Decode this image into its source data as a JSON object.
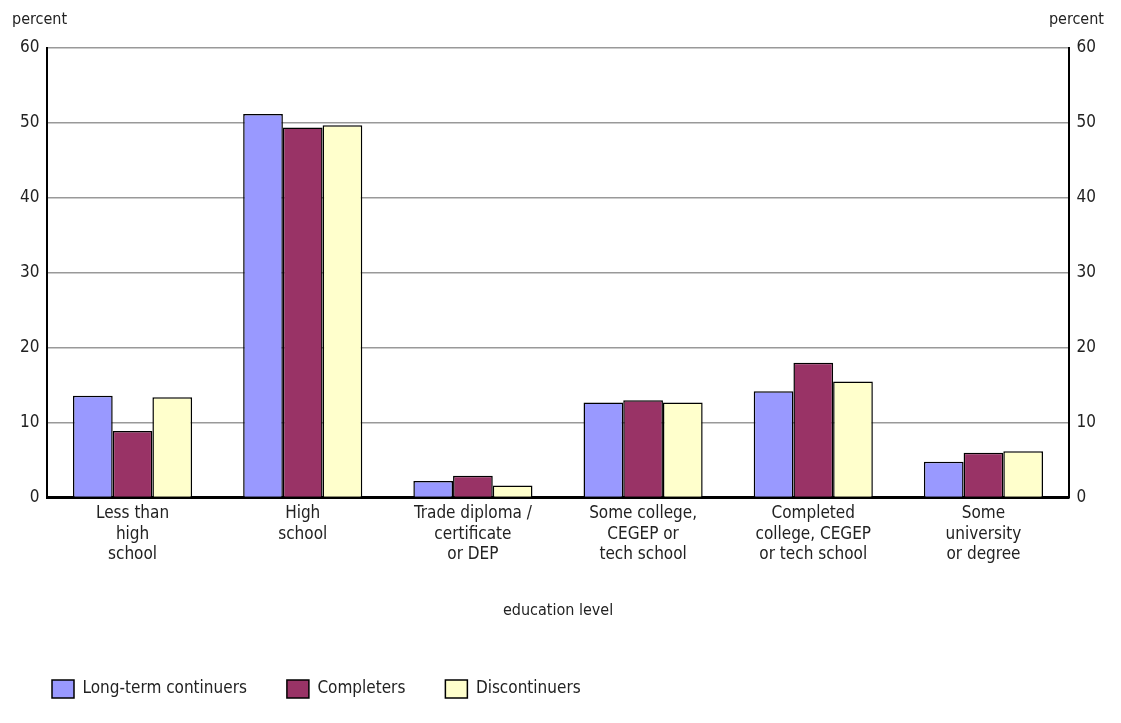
{
  "chart_data": {
    "type": "bar",
    "xlabel": "education level",
    "ylabel": "percent",
    "y2label": "percent",
    "categories": [
      "Less than\nhigh\nschool",
      "High\nschool",
      "Trade diploma /\ncertificate\nor DEP",
      "Some college,\nCEGEP or\ntech school",
      "Completed\ncollege, CEGEP\nor tech school",
      "Some\nuniversity\nor degree"
    ],
    "series": [
      {
        "name": "Long-term continuers",
        "color": "#9999ff",
        "values": [
          13.6,
          51.2,
          2.2,
          12.7,
          14.2,
          4.8
        ]
      },
      {
        "name": "Completers",
        "color": "#993366",
        "values": [
          8.9,
          49.4,
          2.9,
          13.0,
          18.0,
          6.0
        ]
      },
      {
        "name": "Discontinuers",
        "color": "#ffffcc",
        "values": [
          13.4,
          49.7,
          1.6,
          12.7,
          15.5,
          6.2
        ]
      }
    ],
    "ylim": [
      0,
      60
    ],
    "yticks": [
      0,
      10,
      20,
      30,
      40,
      50,
      60
    ],
    "y2lim": [
      0,
      60
    ],
    "y2ticks": [
      0,
      10,
      20,
      30,
      40,
      50,
      60
    ],
    "grid": "y",
    "legend": "bottom"
  }
}
